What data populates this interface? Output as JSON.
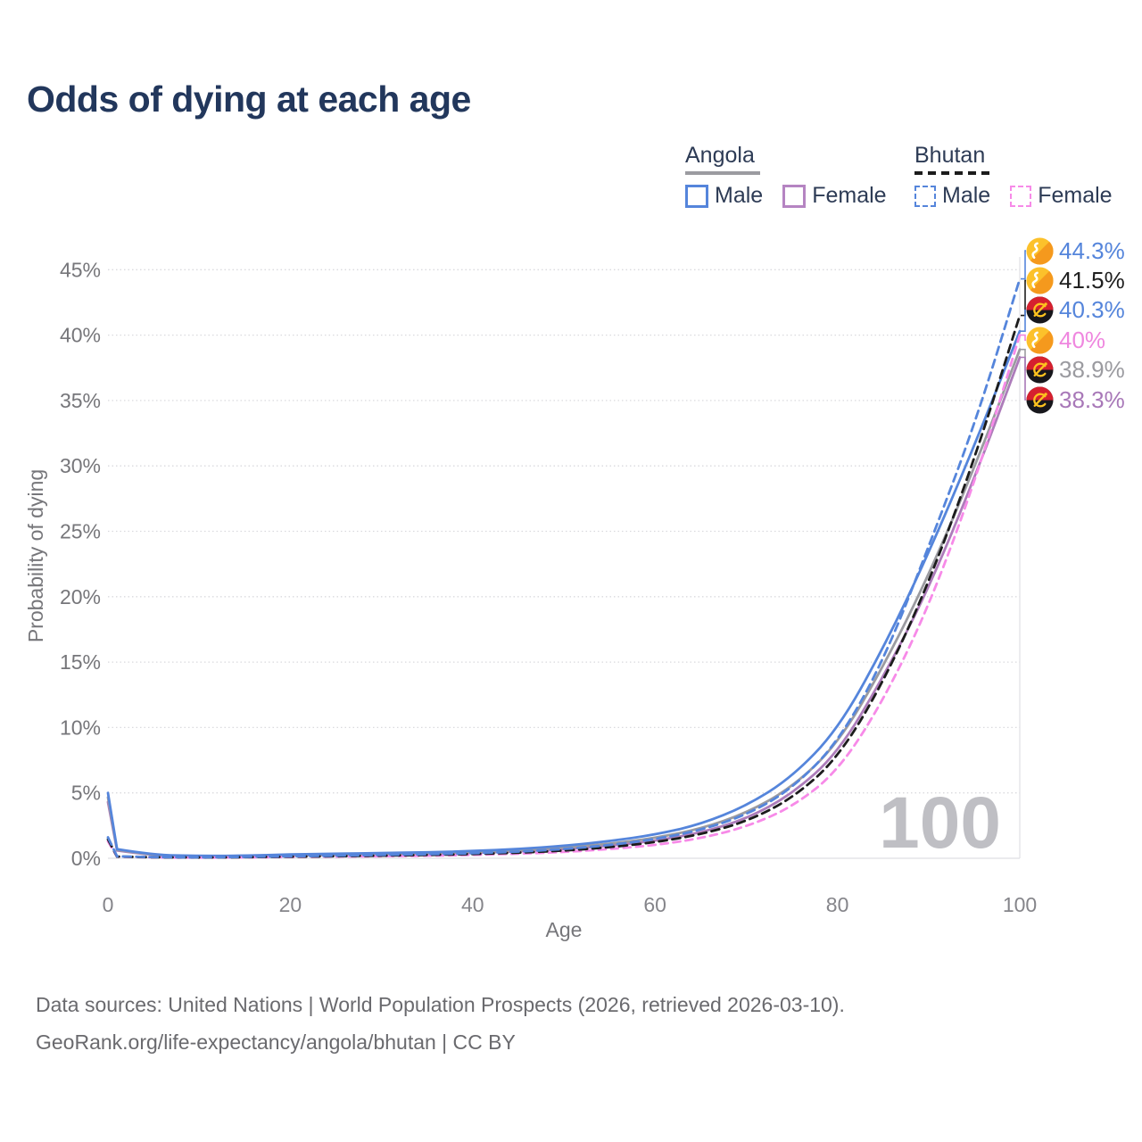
{
  "title": "Odds of dying at each age",
  "legend": {
    "groups": [
      {
        "label": "Angola",
        "line_style": "solid",
        "items": [
          {
            "label": "Male",
            "color": "#5585db",
            "dashed": false
          },
          {
            "label": "Female",
            "color": "#b584c2",
            "dashed": false
          }
        ]
      },
      {
        "label": "Bhutan",
        "line_style": "dashed",
        "items": [
          {
            "label": "Male",
            "color": "#5585db",
            "dashed": true
          },
          {
            "label": "Female",
            "color": "#f78ae8",
            "dashed": true
          }
        ]
      }
    ]
  },
  "chart_data": {
    "type": "line",
    "title": "Odds of dying at each age",
    "xlabel": "Age",
    "ylabel": "Probability of dying",
    "xlim": [
      0,
      100
    ],
    "ylim": [
      0,
      46
    ],
    "x_ticks": [
      0,
      20,
      40,
      60,
      80,
      100
    ],
    "y_ticks": [
      "0%",
      "5%",
      "10%",
      "15%",
      "20%",
      "25%",
      "30%",
      "35%",
      "40%",
      "45%"
    ],
    "grid": "horizontal-dotted",
    "watermark": "100",
    "x": [
      0,
      1,
      5,
      10,
      15,
      20,
      25,
      30,
      35,
      40,
      45,
      50,
      55,
      60,
      65,
      70,
      75,
      80,
      85,
      90,
      95,
      100
    ],
    "series": [
      {
        "id": "angola-female",
        "name": "Angola Female",
        "color": "#ad7cba",
        "dash": null,
        "values": [
          4.3,
          0.6,
          0.2,
          0.15,
          0.16,
          0.21,
          0.25,
          0.29,
          0.34,
          0.42,
          0.52,
          0.7,
          0.95,
          1.32,
          1.95,
          3.0,
          4.9,
          8.0,
          13.8,
          20.6,
          29.0,
          38.3
        ]
      },
      {
        "id": "angola-both",
        "name": "Angola Both sexes",
        "color": "#9b9ba0",
        "dash": null,
        "values": [
          4.65,
          0.65,
          0.22,
          0.16,
          0.18,
          0.25,
          0.3,
          0.34,
          0.4,
          0.48,
          0.6,
          0.82,
          1.1,
          1.55,
          2.25,
          3.45,
          5.4,
          8.7,
          14.6,
          21.6,
          29.8,
          38.9
        ]
      },
      {
        "id": "angola-male",
        "name": "Angola Male",
        "color": "#5585db",
        "dash": null,
        "values": [
          5.0,
          0.7,
          0.25,
          0.18,
          0.2,
          0.3,
          0.35,
          0.4,
          0.46,
          0.55,
          0.7,
          0.95,
          1.3,
          1.8,
          2.6,
          4.0,
          6.2,
          9.8,
          16.0,
          23.3,
          31.5,
          40.3
        ]
      },
      {
        "id": "bhutan-female",
        "name": "Bhutan Female",
        "color": "#f78ae8",
        "dash": "8 6",
        "values": [
          1.3,
          0.12,
          0.06,
          0.05,
          0.07,
          0.1,
          0.13,
          0.16,
          0.2,
          0.26,
          0.35,
          0.48,
          0.7,
          1.0,
          1.52,
          2.4,
          3.9,
          6.6,
          12.0,
          19.2,
          28.6,
          40.0
        ]
      },
      {
        "id": "bhutan-both",
        "name": "Bhutan Both sexes",
        "color": "#1c1c1c",
        "dash": "9 6",
        "values": [
          1.45,
          0.13,
          0.07,
          0.06,
          0.08,
          0.12,
          0.16,
          0.2,
          0.25,
          0.32,
          0.42,
          0.58,
          0.84,
          1.22,
          1.82,
          2.8,
          4.55,
          7.6,
          13.4,
          21.0,
          30.4,
          41.5
        ]
      },
      {
        "id": "bhutan-male",
        "name": "Bhutan Male",
        "color": "#5585db",
        "dash": "9 6",
        "values": [
          1.6,
          0.15,
          0.08,
          0.07,
          0.1,
          0.15,
          0.2,
          0.25,
          0.31,
          0.38,
          0.5,
          0.7,
          1.0,
          1.45,
          2.15,
          3.3,
          5.3,
          8.8,
          15.0,
          23.8,
          33.0,
          44.3
        ]
      }
    ]
  },
  "end_labels": [
    {
      "value": "44.3%",
      "color": "#5585db",
      "flag": "bhutan",
      "series": "bhutan-male"
    },
    {
      "value": "41.5%",
      "color": "#1f1f1f",
      "flag": "bhutan",
      "series": "bhutan-both"
    },
    {
      "value": "40.3%",
      "color": "#5585db",
      "flag": "angola",
      "series": "angola-male"
    },
    {
      "value": "40%",
      "color": "#ef87df",
      "flag": "bhutan",
      "series": "bhutan-female"
    },
    {
      "value": "38.9%",
      "color": "#9b9ba0",
      "flag": "angola",
      "series": "angola-both"
    },
    {
      "value": "38.3%",
      "color": "#a878b8",
      "flag": "angola",
      "series": "angola-female"
    }
  ],
  "footer": {
    "line1": "Data sources: United Nations | World Population Prospects (2026, retrieved 2026-03-10).",
    "line2": "GeoRank.org/life-expectancy/angola/bhutan | CC BY"
  }
}
